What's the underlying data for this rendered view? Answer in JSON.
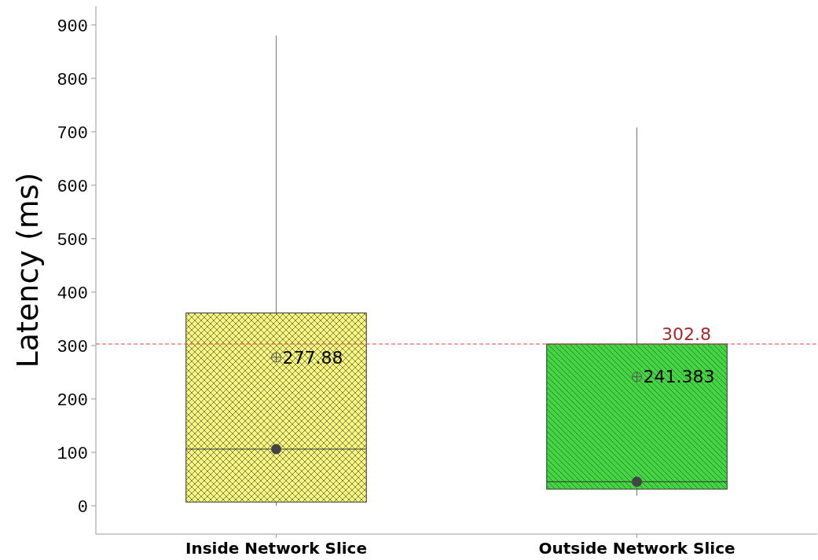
{
  "chart_data": {
    "type": "box",
    "ylabel": "Latency (ms)",
    "categories": [
      "Inside Network Slice",
      "Outside Network Slice"
    ],
    "colors": [
      "#f7f77e",
      "#44d444"
    ],
    "boxes": [
      {
        "low": 0,
        "q1": 7,
        "median": 106,
        "q3": 361,
        "high": 880,
        "mean": 277.88
      },
      {
        "low": 19,
        "q1": 31,
        "median": 45,
        "q3": 302.8,
        "high": 708,
        "mean": 241.383
      }
    ],
    "ylim": [
      -53,
      935
    ],
    "yticks": [
      0,
      100,
      200,
      300,
      400,
      500,
      600,
      700,
      800,
      900
    ],
    "grid": false,
    "ref_lines": [
      {
        "axis": "y",
        "value": 302.8,
        "label": "302.8",
        "color": "#e0474c",
        "line_style": "dashed"
      }
    ],
    "series": [
      {
        "type": "scatter",
        "x": [
          "Inside Network Slice",
          "Outside Network Slice"
        ],
        "values": [
          106,
          45
        ],
        "color": "#444444",
        "marker": "circle"
      }
    ],
    "annotations": [
      "277.88",
      "241.383"
    ]
  }
}
